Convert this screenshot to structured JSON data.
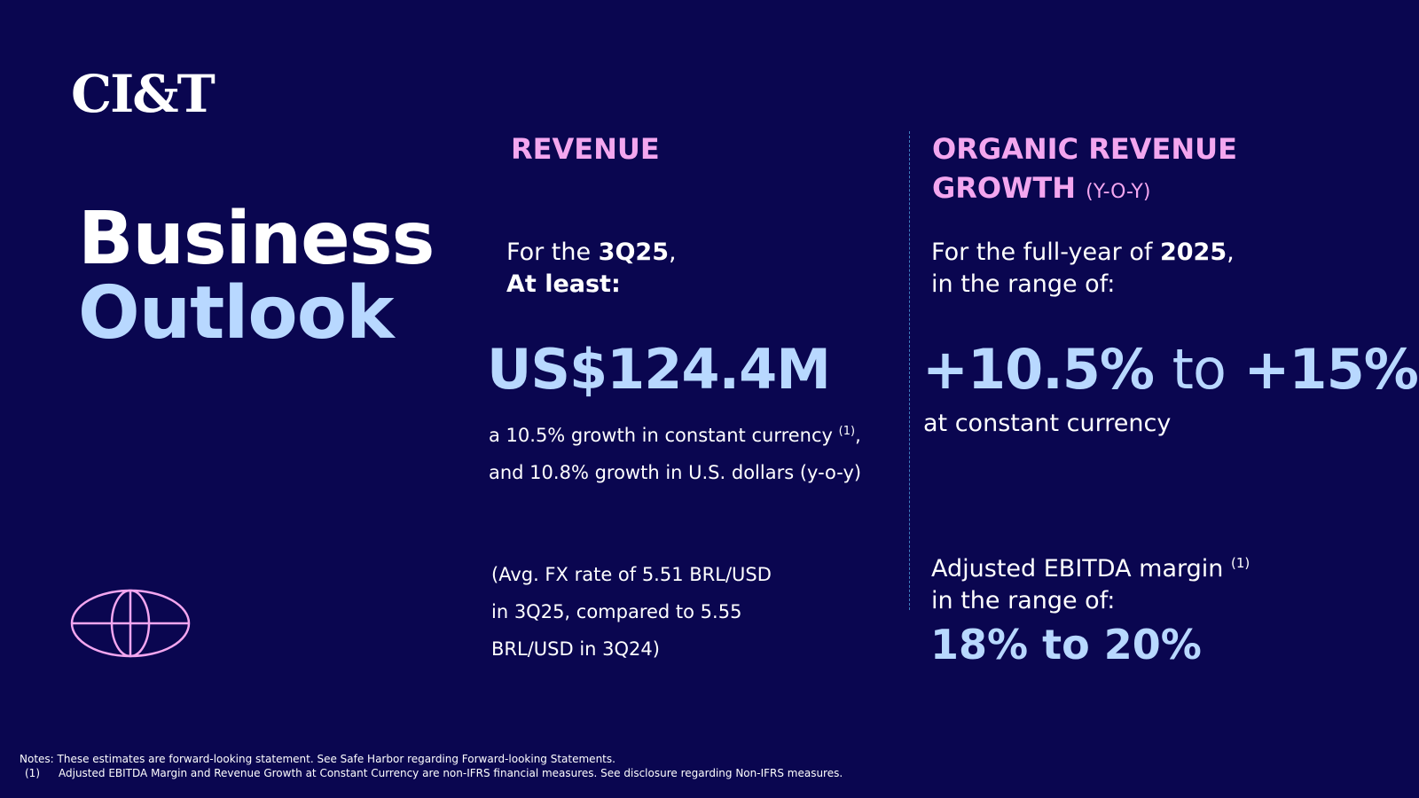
{
  "logo": "CI&T",
  "title": {
    "line1": "Business",
    "line2": "Outlook"
  },
  "revenue": {
    "heading": "REVENUE",
    "intro_prefix": "For the ",
    "intro_bold": "3Q25",
    "intro_suffix": ",",
    "intro_line2": "At least:",
    "amount": "US$124.4M",
    "growth_line1": "a 10.5% growth in constant currency",
    "growth_sup": "(1)",
    "growth_line1_end": ",",
    "growth_line2": "and 10.8% growth in U.S. dollars (y-o-y)",
    "fx_line1": "(Avg. FX rate of 5.51 BRL/USD",
    "fx_line2": "in 3Q25, compared to 5.55",
    "fx_line3": "BRL/USD in 3Q24)"
  },
  "organic": {
    "heading_line1": "ORGANIC REVENUE",
    "heading_line2": "GROWTH",
    "heading_suffix": "(Y-O-Y)",
    "intro_prefix": "For the full-year of ",
    "intro_bold": "2025",
    "intro_suffix": ",",
    "intro_line2": "in the range of:",
    "range_low": "+10.5%",
    "range_to": "to",
    "range_high": "+15%",
    "range_note": "at constant currency",
    "ebitda_label": "Adjusted EBITDA margin",
    "ebitda_sup": "(1)",
    "ebitda_line2": "in the range of:",
    "ebitda_range": "18% to 20%"
  },
  "notes": {
    "line1": "Notes: These estimates are forward-looking statement. See Safe Harbor regarding Forward-looking Statements.",
    "num": "(1)",
    "line2": "Adjusted EBITDA Margin and Revenue Growth at Constant Currency are non-IFRS financial measures. See disclosure regarding Non-IFRS measures."
  },
  "colors": {
    "background": "#0a0650",
    "accent_pink": "#f3a6ef",
    "accent_blue": "#b8d8ff",
    "divider": "#3f7fc0"
  },
  "icons": {
    "globe": "globe-icon"
  }
}
